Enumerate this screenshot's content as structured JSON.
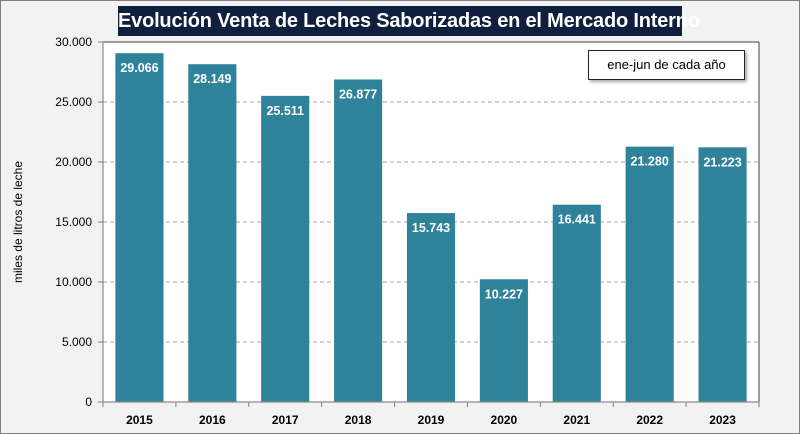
{
  "chart_data": {
    "type": "bar",
    "title": "Evolución Venta de Leches Saborizadas en el Mercado Interno",
    "annotation": "ene-jun de cada año",
    "xlabel": "",
    "ylabel": "miles de litros de leche",
    "categories": [
      "2015",
      "2016",
      "2017",
      "2018",
      "2019",
      "2020",
      "2021",
      "2022",
      "2023"
    ],
    "values": [
      29066,
      28149,
      25511,
      26877,
      15743,
      10227,
      16441,
      21280,
      21223
    ],
    "data_labels": [
      "29.066",
      "28.149",
      "25.511",
      "26.877",
      "15.743",
      "10.227",
      "16.441",
      "21.280",
      "21.223"
    ],
    "ylim": [
      0,
      30000
    ],
    "yticks": [
      0,
      5000,
      10000,
      15000,
      20000,
      25000,
      30000
    ],
    "ytick_labels": [
      "0",
      "5.000",
      "10.000",
      "15.000",
      "20.000",
      "25.000",
      "30.000"
    ],
    "grid": "horizontal-dashed",
    "legend": "none",
    "annotation_position": "top-right",
    "colors": {
      "bar": "#2e8299",
      "title_bg": "#0f1f3d",
      "title_text": "#ffffff",
      "grid": "#a6a6a6"
    }
  }
}
